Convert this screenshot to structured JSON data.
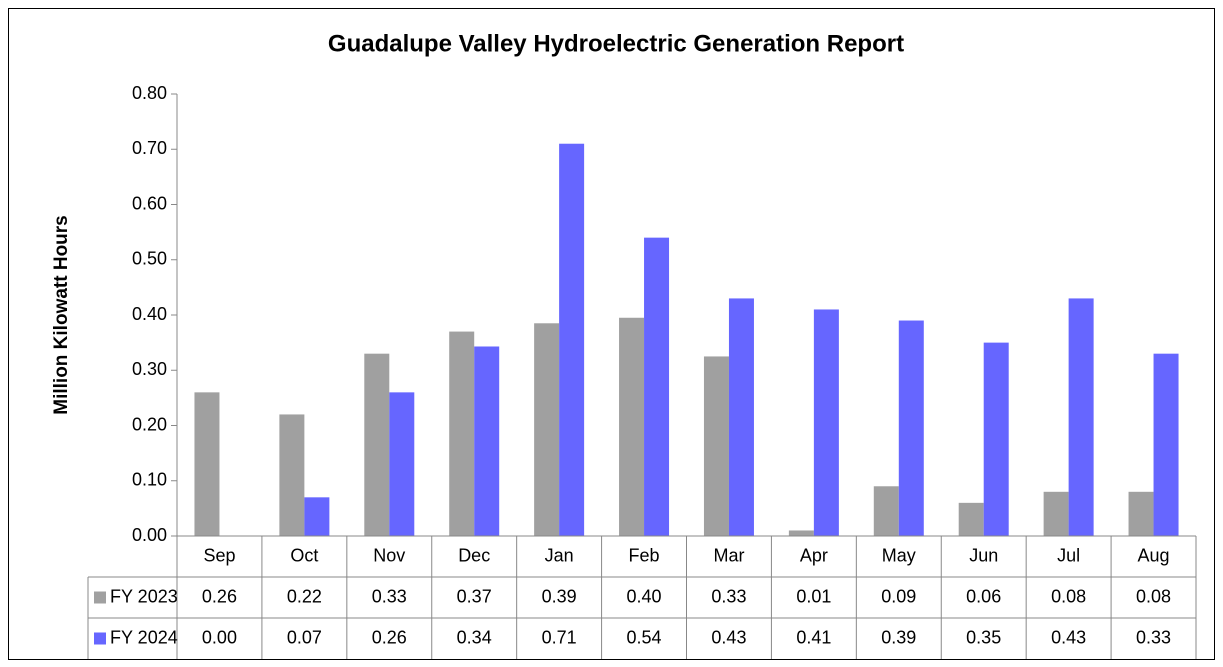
{
  "chart_data": {
    "type": "bar",
    "title": "Guadalupe Valley Hydroelectric Generation Report",
    "y_label": "Million Kilowatt Hours",
    "categories": [
      "Sep",
      "Oct",
      "Nov",
      "Dec",
      "Jan",
      "Feb",
      "Mar",
      "Apr",
      "May",
      "Jun",
      "Jul",
      "Aug"
    ],
    "series": [
      {
        "name": "FY 2023",
        "color": "#a0a0a0",
        "values": [
          0.26,
          0.22,
          0.33,
          0.37,
          0.385,
          0.395,
          0.325,
          0.01,
          0.09,
          0.06,
          0.08,
          0.08
        ],
        "value_labels": [
          "0.26",
          "0.22",
          "0.33",
          "0.37",
          "0.39",
          "0.40",
          "0.33",
          "0.01",
          "0.09",
          "0.06",
          "0.08",
          "0.08"
        ]
      },
      {
        "name": "FY 2024",
        "color": "#6666ff",
        "values": [
          0,
          0.07,
          0.26,
          0.343,
          0.71,
          0.54,
          0.43,
          0.41,
          0.39,
          0.35,
          0.43,
          0.33
        ],
        "value_labels": [
          "0.00",
          "0.07",
          "0.26",
          "0.34",
          "0.71",
          "0.54",
          "0.43",
          "0.41",
          "0.39",
          "0.35",
          "0.43",
          "0.33"
        ]
      }
    ],
    "ylim": [
      0,
      0.8
    ],
    "yticks": [
      {
        "value": 0,
        "label": "0.00"
      },
      {
        "value": 0.1,
        "label": "0.10"
      },
      {
        "value": 0.2,
        "label": "0.20"
      },
      {
        "value": 0.3,
        "label": "0.30"
      },
      {
        "value": 0.4,
        "label": "0.40"
      },
      {
        "value": 0.5,
        "label": "0.50"
      },
      {
        "value": 0.6,
        "label": "0.60"
      },
      {
        "value": 0.7,
        "label": "0.70"
      },
      {
        "value": 0.8,
        "label": "0.80"
      }
    ],
    "grid": false
  }
}
